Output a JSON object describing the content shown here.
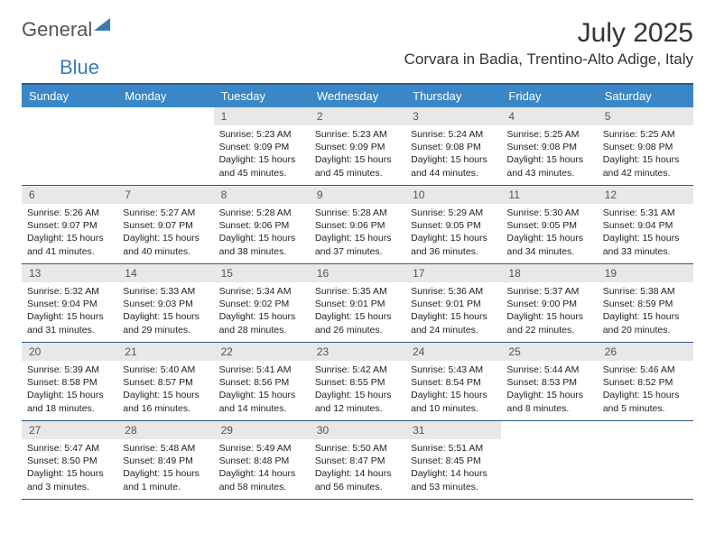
{
  "logo": {
    "text1": "General",
    "text2": "Blue"
  },
  "title": "July 2025",
  "location": "Corvara in Badia, Trentino-Alto Adige, Italy",
  "weekdays": [
    "Sunday",
    "Monday",
    "Tuesday",
    "Wednesday",
    "Thursday",
    "Friday",
    "Saturday"
  ],
  "colors": {
    "header_bg": "#3a87c7",
    "header_border": "#2a5a8a",
    "day_number_bg": "#e8e8e8",
    "logo_blue": "#3a7ab8"
  },
  "weeks": [
    [
      null,
      null,
      {
        "n": "1",
        "sunrise": "5:23 AM",
        "sunset": "9:09 PM",
        "daylight": "15 hours and 45 minutes."
      },
      {
        "n": "2",
        "sunrise": "5:23 AM",
        "sunset": "9:09 PM",
        "daylight": "15 hours and 45 minutes."
      },
      {
        "n": "3",
        "sunrise": "5:24 AM",
        "sunset": "9:08 PM",
        "daylight": "15 hours and 44 minutes."
      },
      {
        "n": "4",
        "sunrise": "5:25 AM",
        "sunset": "9:08 PM",
        "daylight": "15 hours and 43 minutes."
      },
      {
        "n": "5",
        "sunrise": "5:25 AM",
        "sunset": "9:08 PM",
        "daylight": "15 hours and 42 minutes."
      }
    ],
    [
      {
        "n": "6",
        "sunrise": "5:26 AM",
        "sunset": "9:07 PM",
        "daylight": "15 hours and 41 minutes."
      },
      {
        "n": "7",
        "sunrise": "5:27 AM",
        "sunset": "9:07 PM",
        "daylight": "15 hours and 40 minutes."
      },
      {
        "n": "8",
        "sunrise": "5:28 AM",
        "sunset": "9:06 PM",
        "daylight": "15 hours and 38 minutes."
      },
      {
        "n": "9",
        "sunrise": "5:28 AM",
        "sunset": "9:06 PM",
        "daylight": "15 hours and 37 minutes."
      },
      {
        "n": "10",
        "sunrise": "5:29 AM",
        "sunset": "9:05 PM",
        "daylight": "15 hours and 36 minutes."
      },
      {
        "n": "11",
        "sunrise": "5:30 AM",
        "sunset": "9:05 PM",
        "daylight": "15 hours and 34 minutes."
      },
      {
        "n": "12",
        "sunrise": "5:31 AM",
        "sunset": "9:04 PM",
        "daylight": "15 hours and 33 minutes."
      }
    ],
    [
      {
        "n": "13",
        "sunrise": "5:32 AM",
        "sunset": "9:04 PM",
        "daylight": "15 hours and 31 minutes."
      },
      {
        "n": "14",
        "sunrise": "5:33 AM",
        "sunset": "9:03 PM",
        "daylight": "15 hours and 29 minutes."
      },
      {
        "n": "15",
        "sunrise": "5:34 AM",
        "sunset": "9:02 PM",
        "daylight": "15 hours and 28 minutes."
      },
      {
        "n": "16",
        "sunrise": "5:35 AM",
        "sunset": "9:01 PM",
        "daylight": "15 hours and 26 minutes."
      },
      {
        "n": "17",
        "sunrise": "5:36 AM",
        "sunset": "9:01 PM",
        "daylight": "15 hours and 24 minutes."
      },
      {
        "n": "18",
        "sunrise": "5:37 AM",
        "sunset": "9:00 PM",
        "daylight": "15 hours and 22 minutes."
      },
      {
        "n": "19",
        "sunrise": "5:38 AM",
        "sunset": "8:59 PM",
        "daylight": "15 hours and 20 minutes."
      }
    ],
    [
      {
        "n": "20",
        "sunrise": "5:39 AM",
        "sunset": "8:58 PM",
        "daylight": "15 hours and 18 minutes."
      },
      {
        "n": "21",
        "sunrise": "5:40 AM",
        "sunset": "8:57 PM",
        "daylight": "15 hours and 16 minutes."
      },
      {
        "n": "22",
        "sunrise": "5:41 AM",
        "sunset": "8:56 PM",
        "daylight": "15 hours and 14 minutes."
      },
      {
        "n": "23",
        "sunrise": "5:42 AM",
        "sunset": "8:55 PM",
        "daylight": "15 hours and 12 minutes."
      },
      {
        "n": "24",
        "sunrise": "5:43 AM",
        "sunset": "8:54 PM",
        "daylight": "15 hours and 10 minutes."
      },
      {
        "n": "25",
        "sunrise": "5:44 AM",
        "sunset": "8:53 PM",
        "daylight": "15 hours and 8 minutes."
      },
      {
        "n": "26",
        "sunrise": "5:46 AM",
        "sunset": "8:52 PM",
        "daylight": "15 hours and 5 minutes."
      }
    ],
    [
      {
        "n": "27",
        "sunrise": "5:47 AM",
        "sunset": "8:50 PM",
        "daylight": "15 hours and 3 minutes."
      },
      {
        "n": "28",
        "sunrise": "5:48 AM",
        "sunset": "8:49 PM",
        "daylight": "15 hours and 1 minute."
      },
      {
        "n": "29",
        "sunrise": "5:49 AM",
        "sunset": "8:48 PM",
        "daylight": "14 hours and 58 minutes."
      },
      {
        "n": "30",
        "sunrise": "5:50 AM",
        "sunset": "8:47 PM",
        "daylight": "14 hours and 56 minutes."
      },
      {
        "n": "31",
        "sunrise": "5:51 AM",
        "sunset": "8:45 PM",
        "daylight": "14 hours and 53 minutes."
      },
      null,
      null
    ]
  ]
}
